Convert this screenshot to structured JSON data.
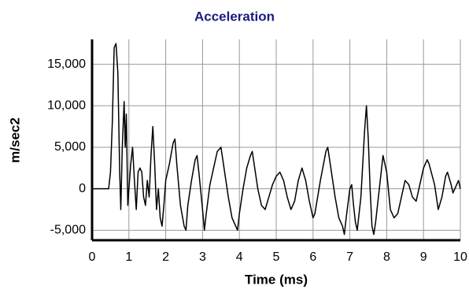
{
  "chart_data": {
    "type": "line",
    "title": "Acceleration",
    "xlabel": "Time (ms)",
    "ylabel": "m/sec2",
    "x": [
      0,
      0.4,
      0.45,
      0.5,
      0.55,
      0.6,
      0.65,
      0.7,
      0.75,
      0.78,
      0.82,
      0.87,
      0.9,
      0.93,
      0.97,
      1.0,
      1.05,
      1.1,
      1.15,
      1.2,
      1.25,
      1.3,
      1.35,
      1.4,
      1.45,
      1.5,
      1.55,
      1.6,
      1.65,
      1.7,
      1.75,
      1.8,
      1.85,
      1.9,
      1.95,
      2.0,
      2.1,
      2.2,
      2.25,
      2.3,
      2.4,
      2.5,
      2.55,
      2.6,
      2.7,
      2.8,
      2.85,
      2.9,
      3.0,
      3.05,
      3.1,
      3.2,
      3.3,
      3.4,
      3.5,
      3.6,
      3.7,
      3.8,
      3.9,
      3.95,
      4.0,
      4.1,
      4.2,
      4.3,
      4.35,
      4.4,
      4.5,
      4.6,
      4.7,
      4.8,
      4.9,
      5.0,
      5.1,
      5.2,
      5.3,
      5.4,
      5.5,
      5.6,
      5.7,
      5.8,
      5.9,
      6.0,
      6.05,
      6.2,
      6.35,
      6.4,
      6.5,
      6.6,
      6.7,
      6.8,
      6.85,
      6.9,
      7.0,
      7.05,
      7.1,
      7.15,
      7.2,
      7.3,
      7.4,
      7.45,
      7.5,
      7.55,
      7.6,
      7.65,
      7.7,
      7.8,
      7.9,
      8.0,
      8.1,
      8.2,
      8.3,
      8.4,
      8.5,
      8.6,
      8.7,
      8.8,
      8.9,
      9.0,
      9.1,
      9.15,
      9.3,
      9.4,
      9.5,
      9.6,
      9.65,
      9.75,
      9.8,
      9.9,
      9.95,
      10.0
    ],
    "series": [
      {
        "color": "#000000",
        "values": [
          0,
          0,
          0,
          2000,
          8000,
          17000,
          17500,
          14000,
          2000,
          -2500,
          5000,
          10500,
          5000,
          9000,
          -2000,
          0,
          3000,
          5000,
          1000,
          -2500,
          2000,
          2500,
          2000,
          -1000,
          -2000,
          1000,
          -1000,
          4000,
          7500,
          3000,
          -2500,
          0,
          -3500,
          -4500,
          -2000,
          1000,
          3000,
          5500,
          6000,
          3000,
          -2000,
          -4500,
          -5000,
          -2000,
          1000,
          3500,
          4000,
          2000,
          -2500,
          -5000,
          -3000,
          500,
          2500,
          4500,
          5000,
          2000,
          -1000,
          -3500,
          -4500,
          -5000,
          -3000,
          0,
          2500,
          4000,
          4500,
          3000,
          0,
          -2000,
          -2500,
          -1000,
          500,
          1500,
          2000,
          1000,
          -1000,
          -2500,
          -1500,
          1000,
          2500,
          1000,
          -1500,
          -3500,
          -3000,
          1000,
          4500,
          5000,
          2000,
          -1000,
          -3500,
          -4500,
          -5500,
          -3500,
          0,
          500,
          -2000,
          -4000,
          -5000,
          -1000,
          7000,
          10000,
          6000,
          0,
          -4500,
          -5500,
          -4000,
          0,
          4000,
          2000,
          -2500,
          -3500,
          -3000,
          -1000,
          1000,
          500,
          -1000,
          -1500,
          500,
          2500,
          3500,
          3000,
          500,
          -2500,
          -1000,
          1500,
          2000,
          500,
          -500,
          500,
          1000,
          0
        ]
      }
    ],
    "xlim": [
      0,
      10
    ],
    "xticks": [
      0,
      1,
      2,
      3,
      4,
      5,
      6,
      7,
      8,
      9,
      10
    ],
    "ylim": [
      -6200,
      18000
    ],
    "yticks": [
      {
        "value": -5000,
        "label": "-5,000"
      },
      0,
      {
        "value": 5000,
        "label": "5,000"
      },
      {
        "value": 10000,
        "label": "10,000"
      },
      {
        "value": 15000,
        "label": "15,000"
      }
    ],
    "grid": true
  }
}
